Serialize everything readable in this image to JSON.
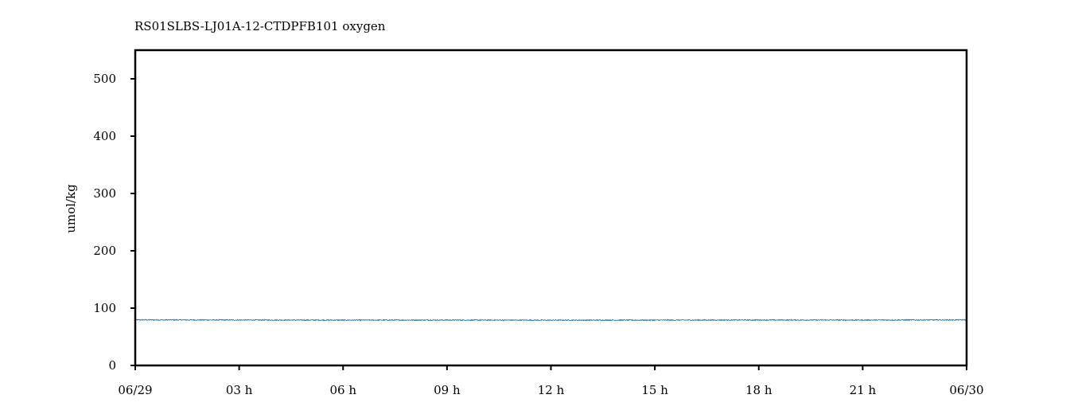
{
  "chart_data": {
    "type": "line",
    "title": "RS01SLBS-LJ01A-12-CTDPFB101 oxygen",
    "xlabel": "",
    "ylabel": "umol/kg",
    "x_ticks": [
      "06/29",
      "03 h",
      "06 h",
      "09 h",
      "12 h",
      "15 h",
      "18 h",
      "21 h",
      "06/30"
    ],
    "y_ticks": [
      0,
      100,
      200,
      300,
      400,
      500
    ],
    "xlim": [
      "2023-06-29 00:00",
      "2023-06-30 00:00"
    ],
    "ylim": [
      0,
      550
    ],
    "grid": false,
    "series": [
      {
        "color": "#1f77b4",
        "x": [
          "2023-06-29 00:00",
          "2023-06-29 03:00",
          "2023-06-29 06:00",
          "2023-06-29 09:00",
          "2023-06-29 12:00",
          "2023-06-29 15:00",
          "2023-06-29 18:00",
          "2023-06-29 21:00",
          "2023-06-30 00:00"
        ],
        "y": [
          79.5,
          79.3,
          79.1,
          79.2,
          79.0,
          79.1,
          79.3,
          79.2,
          79.5
        ],
        "noise_band": 0.8
      }
    ]
  }
}
